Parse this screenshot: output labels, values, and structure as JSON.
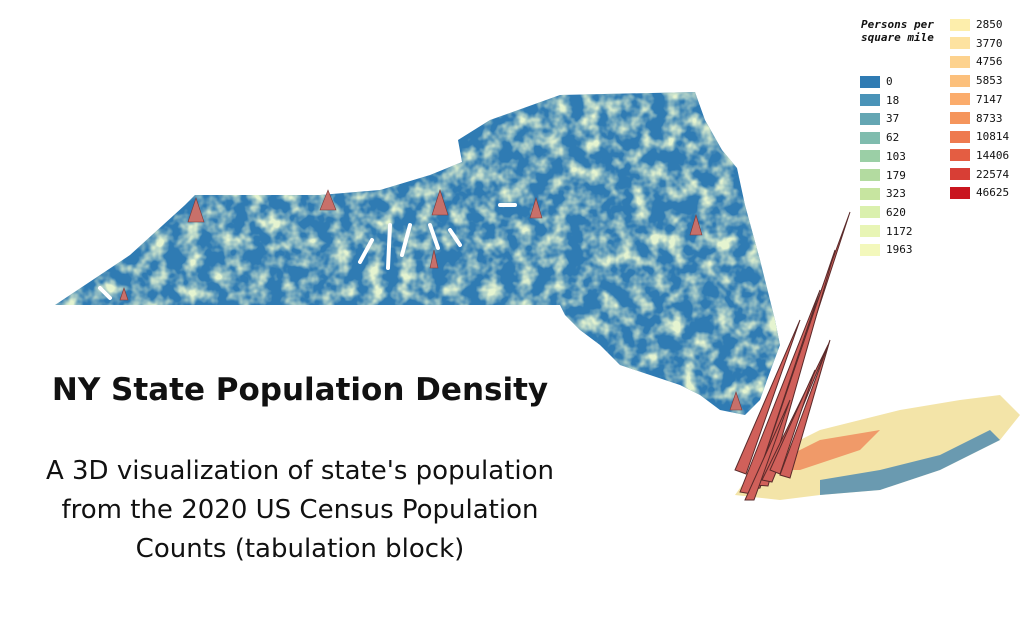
{
  "title": "NY State Population Density",
  "subtitle_lines": [
    "A 3D visualization of state's population",
    "from the 2020 US Census Population",
    "Counts (tabulation block)"
  ],
  "legend": {
    "title": "Persons per square mile",
    "items": [
      {
        "value": 0,
        "color": "#2f7bb3"
      },
      {
        "value": 18,
        "color": "#4a93b8"
      },
      {
        "value": 37,
        "color": "#64a6b3"
      },
      {
        "value": 62,
        "color": "#7fbcae"
      },
      {
        "value": 103,
        "color": "#9bcfa6"
      },
      {
        "value": 179,
        "color": "#b3dba0"
      },
      {
        "value": 323,
        "color": "#c7e5a0"
      },
      {
        "value": 620,
        "color": "#daf0ad"
      },
      {
        "value": 1172,
        "color": "#e8f5b5"
      },
      {
        "value": 1963,
        "color": "#f3f8bc"
      },
      {
        "value": 2850,
        "color": "#fdeeac"
      },
      {
        "value": 3770,
        "color": "#fde2a0"
      },
      {
        "value": 4756,
        "color": "#fdd28e"
      },
      {
        "value": 5853,
        "color": "#fcc07c"
      },
      {
        "value": 7147,
        "color": "#fbac6c"
      },
      {
        "value": 8733,
        "color": "#f5955c"
      },
      {
        "value": 10814,
        "color": "#ee7a4f"
      },
      {
        "value": 14406,
        "color": "#e45d42"
      },
      {
        "value": 22574,
        "color": "#d83e35"
      },
      {
        "value": 46625,
        "color": "#c9151f"
      }
    ]
  }
}
